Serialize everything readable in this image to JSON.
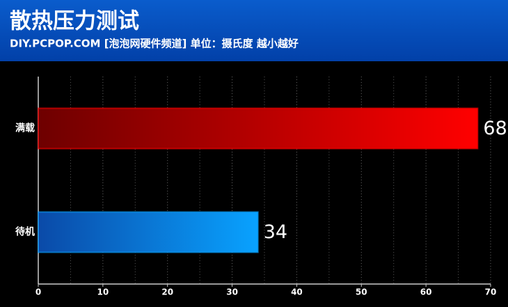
{
  "chart_data": {
    "type": "barh",
    "title": "散热压力测试",
    "subtitle": "DIY.PCPOP.COM [泡泡网硬件频道] 单位：摄氏度  越小越好",
    "categories": [
      "满载",
      "待机"
    ],
    "values": [
      68,
      34
    ],
    "colors": [
      [
        "#6e0000",
        "#ff0000"
      ],
      [
        "#0a4aa8",
        "#09a2ff"
      ]
    ],
    "xlim": [
      0,
      70
    ],
    "xticks": [
      0,
      10,
      20,
      30,
      40,
      50,
      60,
      70
    ],
    "grid": true
  }
}
